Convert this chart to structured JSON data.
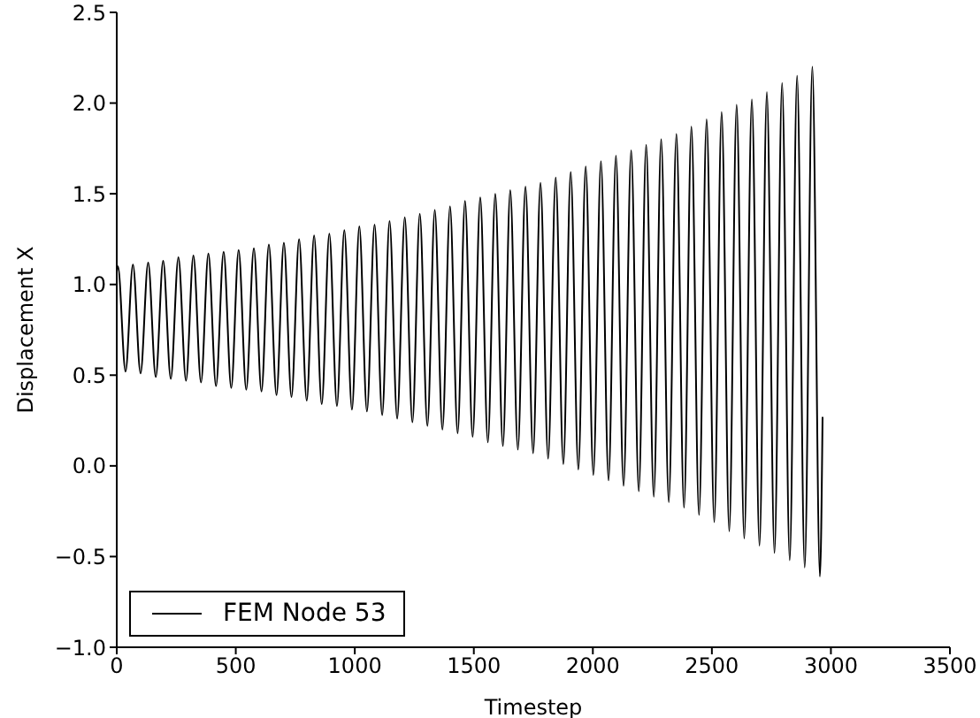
{
  "chart_data": {
    "type": "line",
    "xlabel": "Timestep",
    "ylabel": "Displacement X",
    "xlim": [
      0,
      3500
    ],
    "xticks": [
      0,
      500,
      1000,
      1500,
      2000,
      2500,
      3000,
      3500
    ],
    "ylim": [
      -1,
      2.5
    ],
    "yticks": [
      {
        "value": -1,
        "label": "−1.0"
      },
      {
        "value": -0.5,
        "label": "−0.5"
      },
      {
        "value": 0,
        "label": "0.0"
      },
      {
        "value": 0.5,
        "label": "0.5"
      },
      {
        "value": 1,
        "label": "1.0"
      },
      {
        "value": 1.5,
        "label": "1.5"
      },
      {
        "value": 2,
        "label": "2.0"
      },
      {
        "value": 2.5,
        "label": "2.5"
      }
    ],
    "grid": false,
    "legend": "bottom left",
    "marker": "none",
    "line_style": "solid",
    "series": [
      {
        "name": "FEM Node 53",
        "color": "#000000",
        "x": [
          0,
          5,
          37,
          68,
          100,
          132,
          164,
          195,
          227,
          259,
          291,
          322,
          354,
          385,
          417,
          449,
          481,
          512,
          544,
          576,
          608,
          639,
          671,
          702,
          734,
          766,
          798,
          829,
          861,
          893,
          925,
          956,
          988,
          1019,
          1051,
          1083,
          1115,
          1146,
          1178,
          1210,
          1242,
          1273,
          1305,
          1336,
          1368,
          1400,
          1432,
          1463,
          1495,
          1527,
          1559,
          1590,
          1622,
          1653,
          1685,
          1717,
          1749,
          1780,
          1812,
          1844,
          1876,
          1907,
          1939,
          1970,
          2002,
          2034,
          2066,
          2097,
          2129,
          2161,
          2193,
          2224,
          2256,
          2287,
          2319,
          2351,
          2383,
          2414,
          2446,
          2478,
          2510,
          2541,
          2573,
          2604,
          2636,
          2668,
          2700,
          2731,
          2763,
          2795,
          2827,
          2858,
          2890,
          2922,
          2954,
          2965
        ],
        "values": [
          1.07,
          1.1,
          0.52,
          1.11,
          0.51,
          1.12,
          0.49,
          1.13,
          0.48,
          1.15,
          0.47,
          1.16,
          0.46,
          1.17,
          0.44,
          1.18,
          0.43,
          1.19,
          0.42,
          1.2,
          0.41,
          1.22,
          0.39,
          1.23,
          0.38,
          1.25,
          0.36,
          1.27,
          0.34,
          1.28,
          0.33,
          1.3,
          0.31,
          1.32,
          0.3,
          1.33,
          0.28,
          1.35,
          0.26,
          1.37,
          0.24,
          1.39,
          0.22,
          1.41,
          0.2,
          1.43,
          0.18,
          1.46,
          0.16,
          1.48,
          0.13,
          1.5,
          0.11,
          1.52,
          0.09,
          1.54,
          0.07,
          1.56,
          0.04,
          1.59,
          0.01,
          1.62,
          -0.02,
          1.65,
          -0.05,
          1.68,
          -0.08,
          1.71,
          -0.11,
          1.74,
          -0.14,
          1.77,
          -0.17,
          1.8,
          -0.2,
          1.83,
          -0.23,
          1.87,
          -0.27,
          1.91,
          -0.31,
          1.95,
          -0.36,
          1.99,
          -0.4,
          2.02,
          -0.44,
          2.06,
          -0.48,
          2.11,
          -0.52,
          2.15,
          -0.56,
          2.2,
          -0.61,
          0.27
        ]
      }
    ]
  }
}
